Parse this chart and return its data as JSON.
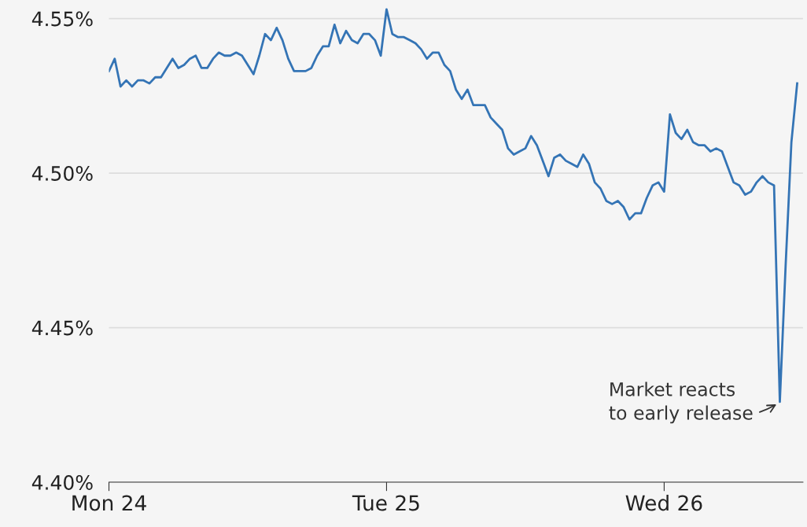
{
  "chart_data": {
    "type": "line",
    "categories": [
      "Mon 24",
      null,
      null,
      null,
      null,
      null,
      null,
      null,
      null,
      null,
      null,
      null,
      null,
      null,
      null,
      null,
      null,
      null,
      null,
      null,
      null,
      null,
      null,
      null,
      null,
      null,
      null,
      null,
      null,
      null,
      null,
      null,
      null,
      null,
      null,
      null,
      null,
      null,
      null,
      null,
      null,
      null,
      null,
      null,
      null,
      null,
      null,
      null,
      "Tue 25",
      null,
      null,
      null,
      null,
      null,
      null,
      null,
      null,
      null,
      null,
      null,
      null,
      null,
      null,
      null,
      null,
      null,
      null,
      null,
      null,
      null,
      null,
      null,
      null,
      null,
      null,
      null,
      null,
      null,
      null,
      null,
      null,
      null,
      null,
      null,
      null,
      null,
      null,
      null,
      null,
      null,
      null,
      null,
      null,
      null,
      null,
      null,
      "Wed 26",
      null,
      null,
      null,
      null,
      null,
      null,
      null,
      null,
      null,
      null,
      null,
      null,
      null,
      null,
      null,
      null,
      null,
      null,
      null,
      null,
      null,
      null,
      null
    ],
    "series": [
      {
        "color": "#3474b5",
        "values": [
          4.533,
          4.537,
          4.528,
          4.53,
          4.528,
          4.53,
          4.53,
          4.529,
          4.531,
          4.531,
          4.534,
          4.537,
          4.534,
          4.535,
          4.537,
          4.538,
          4.534,
          4.534,
          4.537,
          4.539,
          4.538,
          4.538,
          4.539,
          4.538,
          4.535,
          4.532,
          4.538,
          4.545,
          4.543,
          4.547,
          4.543,
          4.537,
          4.533,
          4.533,
          4.533,
          4.534,
          4.538,
          4.541,
          4.541,
          4.548,
          4.542,
          4.546,
          4.543,
          4.542,
          4.545,
          4.545,
          4.543,
          4.538,
          4.553,
          4.545,
          4.544,
          4.544,
          4.543,
          4.542,
          4.54,
          4.537,
          4.539,
          4.539,
          4.535,
          4.533,
          4.527,
          4.524,
          4.527,
          4.522,
          4.522,
          4.522,
          4.518,
          4.516,
          4.514,
          4.508,
          4.506,
          4.507,
          4.508,
          4.512,
          4.509,
          4.504,
          4.499,
          4.505,
          4.506,
          4.504,
          4.503,
          4.502,
          4.506,
          4.503,
          4.497,
          4.495,
          4.491,
          4.49,
          4.491,
          4.489,
          4.485,
          4.487,
          4.487,
          4.492,
          4.496,
          4.497,
          4.494,
          4.519,
          4.513,
          4.511,
          4.514,
          4.51,
          4.509,
          4.509,
          4.507,
          4.508,
          4.507,
          4.502,
          4.497,
          4.496,
          4.493,
          4.494,
          4.497,
          4.499,
          4.497,
          4.496,
          4.426,
          4.47,
          4.51,
          4.529
        ]
      }
    ],
    "ylim": [
      4.4,
      4.556
    ],
    "yticks": [
      {
        "value": 4.4,
        "label": "4.40%"
      },
      {
        "value": 4.45,
        "label": "4.45%"
      },
      {
        "value": 4.5,
        "label": "4.50%"
      },
      {
        "value": 4.55,
        "label": "4.55%"
      }
    ],
    "grid": "y",
    "marker": "none",
    "line_style": "solid",
    "annotations": [
      "Market reacts\nto early release"
    ]
  }
}
